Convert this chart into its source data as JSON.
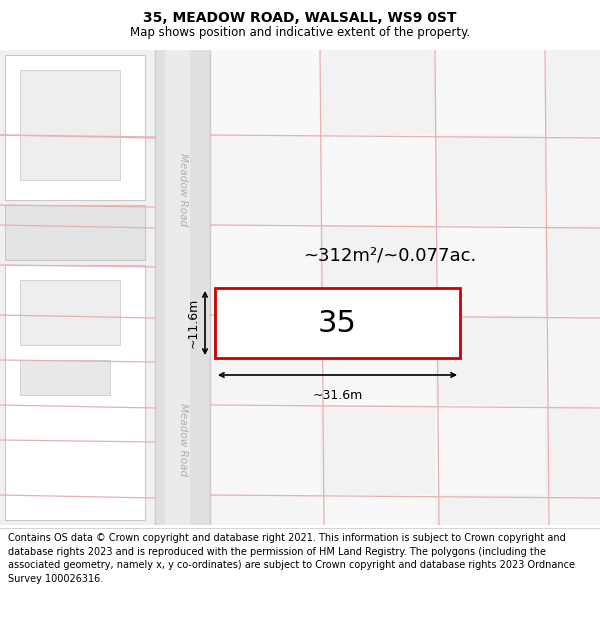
{
  "title": "35, MEADOW ROAD, WALSALL, WS9 0ST",
  "subtitle": "Map shows position and indicative extent of the property.",
  "footer": "Contains OS data © Crown copyright and database right 2021. This information is subject to Crown copyright and database rights 2023 and is reproduced with the permission of HM Land Registry. The polygons (including the associated geometry, namely x, y co-ordinates) are subject to Crown copyright and database rights 2023 Ordnance Survey 100026316.",
  "area_label": "~312m²/~0.077ac.",
  "width_label": "~31.6m",
  "height_label": "~11.6m",
  "plot_number": "35",
  "bg_color": "#ffffff",
  "map_bg": "#f0f0f0",
  "road_bg": "#e8e8e8",
  "block_fill": "#e8e8e8",
  "block_edge": "#c8c8c8",
  "grid_line_color": "#e8b0b0",
  "plot_fill": "#ffffff",
  "plot_edge_color": "#cc0000",
  "road_label_color": "#b0b0b0",
  "title_fontsize": 10,
  "subtitle_fontsize": 8.5,
  "footer_fontsize": 7.0,
  "area_fontsize": 13,
  "plot_num_fontsize": 22,
  "dim_fontsize": 9
}
